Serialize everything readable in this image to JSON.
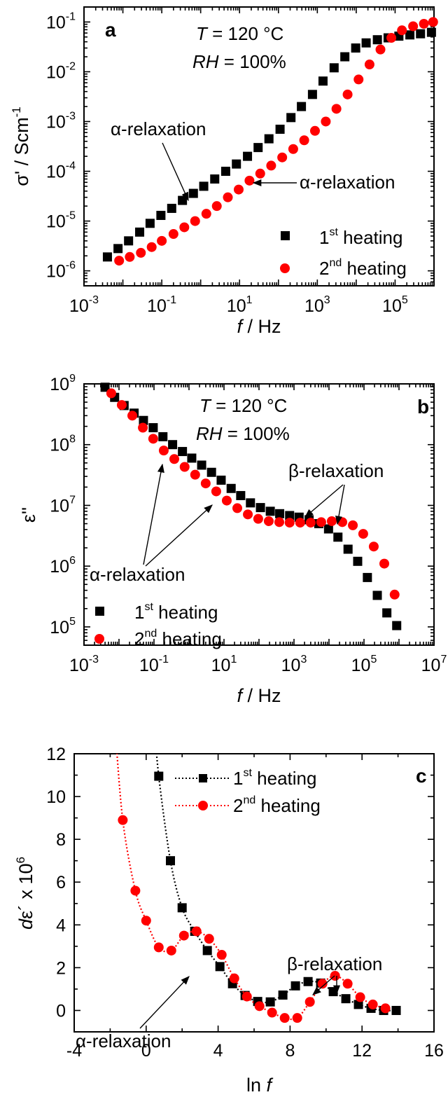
{
  "colors": {
    "first_heating": "#000000",
    "second_heating": "#ff0000"
  },
  "chart_data": [
    {
      "panel": "a",
      "type": "scatter",
      "xlabel": "f / Hz",
      "ylabel": "σ' / Scm⁻¹",
      "xscale": "log",
      "yscale": "log",
      "xlim": [
        0.001,
        1000000
      ],
      "ylim": [
        5e-07,
        0.2
      ],
      "xtick_labels": [
        "10-3",
        "10-1",
        "101",
        "103",
        "105"
      ],
      "ytick_labels": [
        "10-6",
        "10-5",
        "10-4",
        "10-3",
        "10-2",
        "10-1"
      ],
      "annotations": [
        "T = 120 °C",
        "RH = 100%",
        "α-relaxation",
        "α-relaxation"
      ],
      "legend_position": "bottom-right",
      "legend": [
        "1st heating",
        "2nd heating"
      ],
      "series": [
        {
          "name": "1st heating",
          "marker": "square",
          "color": "#000000",
          "x": [
            0.004,
            0.0075,
            0.014,
            0.027,
            0.05,
            0.095,
            0.18,
            0.34,
            0.65,
            1.2,
            2.3,
            4.4,
            8.3,
            16,
            30,
            57,
            110,
            210,
            390,
            750,
            1400,
            2700,
            5100,
            9700,
            18000,
            35000,
            66000,
            125000,
            240000,
            450000,
            860000
          ],
          "y": [
            1.9e-06,
            2.8e-06,
            4e-06,
            6e-06,
            9e-06,
            1.3e-05,
            1.8e-05,
            2.6e-05,
            3.6e-05,
            5e-05,
            7e-05,
            0.0001,
            0.00014,
            0.0002,
            0.0003,
            0.00045,
            0.0007,
            0.0012,
            0.002,
            0.0035,
            0.0065,
            0.012,
            0.02,
            0.03,
            0.038,
            0.044,
            0.048,
            0.052,
            0.055,
            0.058,
            0.062
          ]
        },
        {
          "name": "2nd heating",
          "marker": "circle",
          "color": "#ff0000",
          "x": [
            0.008,
            0.015,
            0.029,
            0.055,
            0.1,
            0.2,
            0.38,
            0.72,
            1.4,
            2.6,
            5,
            9.5,
            18,
            34,
            65,
            125,
            240,
            460,
            870,
            1650,
            3100,
            6000,
            11500,
            22000,
            42000,
            80000,
            150000,
            290000,
            550000,
            950000
          ],
          "y": [
            1.6e-06,
            1.9e-06,
            2.3e-06,
            3e-06,
            4e-06,
            5.5e-06,
            7.5e-06,
            1e-05,
            1.4e-05,
            2e-05,
            3e-05,
            4.3e-05,
            6.5e-05,
            9e-05,
            0.00013,
            0.00019,
            0.00028,
            0.00042,
            0.00065,
            0.001,
            0.0018,
            0.0035,
            0.007,
            0.014,
            0.028,
            0.048,
            0.068,
            0.082,
            0.092,
            0.1
          ]
        }
      ]
    },
    {
      "panel": "b",
      "type": "scatter",
      "xlabel": "f / Hz",
      "ylabel": "ε''",
      "xscale": "log",
      "yscale": "log",
      "xlim": [
        0.001,
        10000000
      ],
      "ylim": [
        50000,
        1000000000
      ],
      "xtick_labels": [
        "10-3",
        "10-1",
        "101",
        "103",
        "105",
        "107"
      ],
      "ytick_labels": [
        "105",
        "106",
        "107",
        "108",
        "109"
      ],
      "annotations": [
        "T = 120 °C",
        "RH = 100%",
        "α-relaxation",
        "β-relaxation"
      ],
      "legend_position": "bottom-left",
      "legend": [
        "1st heating",
        "2nd heating"
      ],
      "series": [
        {
          "name": "1st heating",
          "marker": "square",
          "color": "#000000",
          "x": [
            0.004,
            0.0075,
            0.014,
            0.027,
            0.05,
            0.095,
            0.18,
            0.34,
            0.65,
            1.2,
            2.3,
            4.4,
            8.3,
            16,
            30,
            57,
            110,
            210,
            390,
            750,
            1400,
            2700,
            5100,
            9700,
            18000,
            35000,
            66000,
            125000,
            240000,
            450000,
            860000
          ],
          "y": [
            880000000,
            600000000,
            440000000,
            330000000,
            250000000,
            190000000,
            135000000,
            100000000,
            77000000,
            60000000,
            46000000,
            35000000,
            26000000,
            19000000,
            14500000,
            11000000,
            9200000,
            8000000,
            7300000,
            6800000,
            6400000,
            5800000,
            5000000,
            4100000,
            3000000,
            1900000,
            1200000,
            650000,
            330000,
            170000,
            105000
          ]
        },
        {
          "name": "2nd heating",
          "marker": "circle",
          "color": "#ff0000",
          "x": [
            0.006,
            0.012,
            0.024,
            0.048,
            0.095,
            0.19,
            0.38,
            0.75,
            1.5,
            3,
            6,
            12,
            24,
            48,
            95,
            190,
            380,
            750,
            1500,
            3000,
            6000,
            12000,
            24000,
            48000,
            95000,
            190000,
            380000,
            750000
          ],
          "y": [
            700000000,
            450000000,
            300000000,
            190000000,
            125000000,
            80000000,
            58000000,
            43000000,
            32000000,
            23000000,
            17000000,
            12000000,
            9000000,
            7100000,
            6000000,
            5500000,
            5300000,
            5200000,
            5200000,
            5200000,
            5300000,
            5500000,
            5300000,
            4700000,
            3400000,
            2100000,
            1100000,
            340000
          ]
        }
      ]
    },
    {
      "panel": "c",
      "type": "line",
      "xlabel": "ln f",
      "ylabel": "dε´ x 10⁶",
      "xlim": [
        -4,
        16
      ],
      "ylim": [
        -1,
        12
      ],
      "xtick_labels": [
        "-4",
        "0",
        "4",
        "8",
        "12",
        "16"
      ],
      "ytick_labels": [
        "0",
        "2",
        "4",
        "6",
        "8",
        "10",
        "12"
      ],
      "annotations": [
        "α-relaxation",
        "β-relaxation"
      ],
      "legend_position": "top-right",
      "legend": [
        "1st heating",
        "2nd heating"
      ],
      "series": [
        {
          "name": "1st heating",
          "marker": "square",
          "color": "#000000",
          "x": [
            0.7,
            1.35,
            2.0,
            2.7,
            3.4,
            4.1,
            4.8,
            5.5,
            6.2,
            6.9,
            7.6,
            8.3,
            9.0,
            9.7,
            10.4,
            11.1,
            11.8,
            12.5,
            13.2,
            13.9
          ],
          "y": [
            10.95,
            7.0,
            4.8,
            3.7,
            2.8,
            2.05,
            1.25,
            0.7,
            0.42,
            0.4,
            0.72,
            1.15,
            1.35,
            1.28,
            0.88,
            0.55,
            0.28,
            0.1,
            0.0,
            0.0
          ]
        },
        {
          "name": "2nd heating",
          "marker": "circle",
          "color": "#ff0000",
          "x": [
            -1.3,
            -0.6,
            0.0,
            0.7,
            1.4,
            2.1,
            2.8,
            3.5,
            4.2,
            4.9,
            5.6,
            6.3,
            7.0,
            7.7,
            8.4,
            9.1,
            9.8,
            10.5,
            11.2,
            11.9,
            12.6,
            13.3
          ],
          "y": [
            8.9,
            5.6,
            4.2,
            2.95,
            2.8,
            3.5,
            3.7,
            3.35,
            2.6,
            1.5,
            0.65,
            0.2,
            -0.1,
            -0.35,
            -0.35,
            0.4,
            1.25,
            1.62,
            1.25,
            0.62,
            0.28,
            0.1
          ]
        }
      ]
    }
  ]
}
